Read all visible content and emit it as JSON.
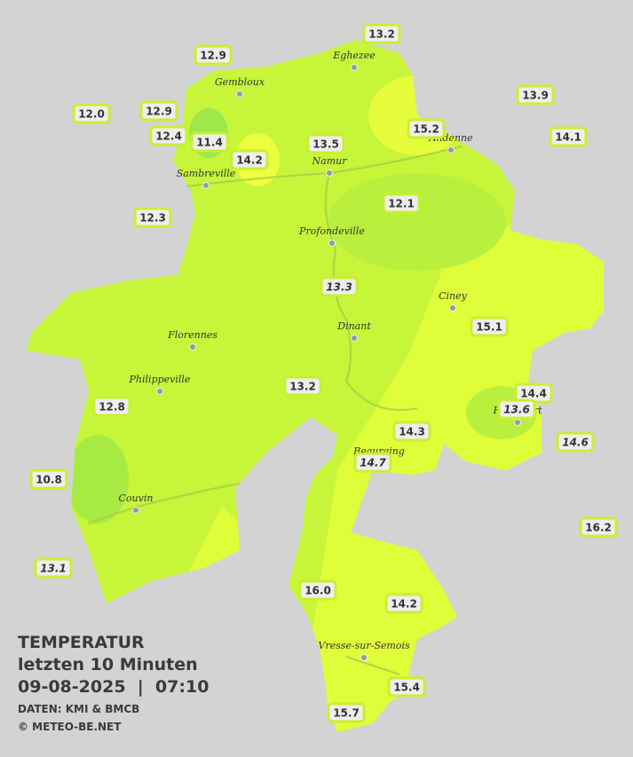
{
  "title": {
    "heading": "TEMPERATUR",
    "period": "letzten 10 Minuten",
    "datetime": "09-08-2025  |  07:10",
    "source": "DATEN: KMI & BMCB",
    "copyright": "© METEO-BE.NET"
  },
  "towns": [
    "Eghezee",
    "Gembloux",
    "Andenne",
    "Namur",
    "Sambreville",
    "Profondeville",
    "Ciney",
    "Dinant",
    "Florennes",
    "Philippeville",
    "Rochefort",
    "Beauraing",
    "Couvin",
    "Vresse-sur-Semois"
  ],
  "stations": [
    {
      "value": "13.2"
    },
    {
      "value": "12.9"
    },
    {
      "value": "13.9"
    },
    {
      "value": "12.0"
    },
    {
      "value": "12.9"
    },
    {
      "value": "15.2"
    },
    {
      "value": "14.1"
    },
    {
      "value": "12.4"
    },
    {
      "value": "11.4"
    },
    {
      "value": "13.5"
    },
    {
      "value": "14.2"
    },
    {
      "value": "12.1"
    },
    {
      "value": "12.3"
    },
    {
      "value": "13.3",
      "italic": true
    },
    {
      "value": "15.1"
    },
    {
      "value": "13.2"
    },
    {
      "value": "14.4"
    },
    {
      "value": "13.6",
      "italic": true
    },
    {
      "value": "12.8"
    },
    {
      "value": "14.3"
    },
    {
      "value": "14.6",
      "italic": true
    },
    {
      "value": "14.7",
      "italic": true
    },
    {
      "value": "10.8"
    },
    {
      "value": "16.2"
    },
    {
      "value": "13.1",
      "italic": true
    },
    {
      "value": "16.0"
    },
    {
      "value": "14.2"
    },
    {
      "value": "15.4"
    },
    {
      "value": "15.7"
    }
  ]
}
